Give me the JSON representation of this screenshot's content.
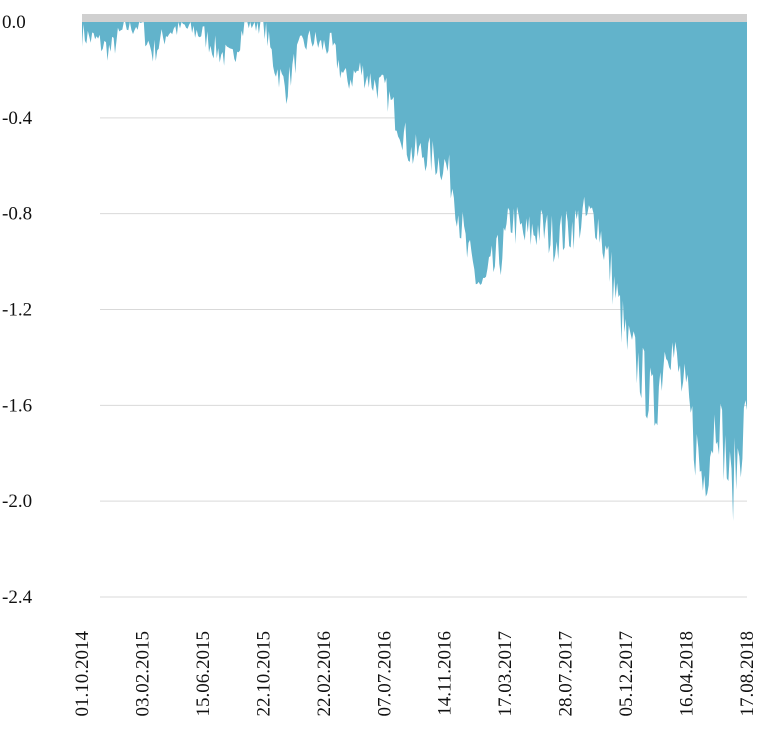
{
  "chart_data": {
    "type": "area",
    "title": "",
    "xlabel": "",
    "ylabel": "",
    "ylim": [
      -2.4,
      0.0
    ],
    "yticks": [
      "0.0",
      "-0.4",
      "-0.8",
      "-1.2",
      "-1.6",
      "-2.0",
      "-2.4"
    ],
    "ytick_values": [
      0.0,
      -0.4,
      -0.8,
      -1.2,
      -1.6,
      -2.0,
      -2.4
    ],
    "xticks": [
      "01.10.2014",
      "03.02.2015",
      "15.06.2015",
      "22.10.2015",
      "22.02.2016",
      "07.07.2016",
      "14.11.2016",
      "17.03.2017",
      "28.07.2017",
      "05.12.2017",
      "16.04.2018",
      "17.08.2018"
    ],
    "grid": "horizontal",
    "legend": "none",
    "colors": {
      "fill": "#62b3cb",
      "grid": "#d9d9d9",
      "top_band": "#d0d0d0"
    },
    "series": [
      {
        "x": [
          "2014-10-01",
          "2014-11-01",
          "2014-12-01",
          "2015-01-01",
          "2015-02-03",
          "2015-03-01",
          "2015-04-01",
          "2015-05-01",
          "2015-06-15",
          "2015-07-15",
          "2015-08-15",
          "2015-09-15",
          "2015-10-22",
          "2015-11-15",
          "2015-12-10",
          "2016-01-05",
          "2016-02-01",
          "2016-02-22",
          "2016-03-15",
          "2016-04-15",
          "2016-05-15",
          "2016-06-15",
          "2016-07-07",
          "2016-08-01",
          "2016-09-01",
          "2016-10-01",
          "2016-11-14",
          "2016-12-01",
          "2017-01-01",
          "2017-02-01",
          "2017-03-17",
          "2017-04-01",
          "2017-05-01",
          "2017-06-01",
          "2017-07-01",
          "2017-07-28",
          "2017-09-01",
          "2017-10-01",
          "2017-11-01",
          "2017-12-05",
          "2018-01-01",
          "2018-02-01",
          "2018-03-01",
          "2018-04-16",
          "2018-05-15",
          "2018-06-15",
          "2018-07-15",
          "2018-08-17"
        ],
        "values": [
          -0.05,
          -0.08,
          -0.12,
          -0.02,
          -0.01,
          -0.13,
          -0.04,
          -0.02,
          -0.05,
          -0.12,
          -0.16,
          -0.0,
          -0.0,
          -0.18,
          -0.28,
          -0.12,
          -0.07,
          -0.1,
          -0.1,
          -0.25,
          -0.2,
          -0.26,
          -0.28,
          -0.4,
          -0.55,
          -0.55,
          -0.6,
          -0.7,
          -1.0,
          -1.12,
          -0.94,
          -0.82,
          -0.9,
          -0.86,
          -0.9,
          -0.88,
          -0.82,
          -0.82,
          -1.05,
          -1.35,
          -1.45,
          -1.62,
          -1.3,
          -1.63,
          -1.92,
          -1.62,
          -1.96,
          -1.62
        ]
      }
    ]
  }
}
